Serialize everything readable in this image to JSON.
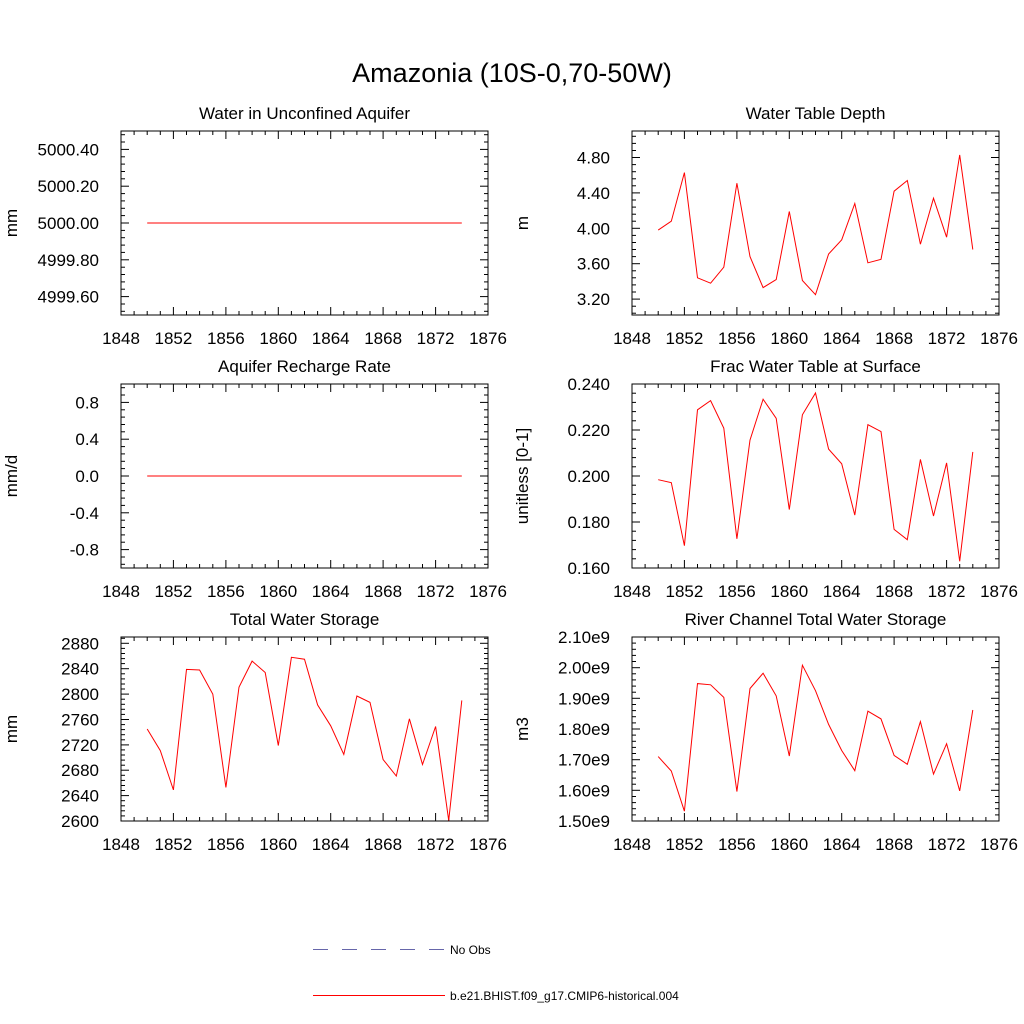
{
  "figure_title": "Amazonia (10S-0,70-50W)",
  "legend": [
    {
      "label": "No Obs",
      "color": "#6666aa",
      "style": "dashed"
    },
    {
      "label": "b.e21.BHIST.f09_g17.CMIP6-historical.004",
      "color": "#ff0000",
      "style": "solid"
    }
  ],
  "chart_data": [
    {
      "id": "aquifer-water",
      "type": "line",
      "title": "Water in Unconfined Aquifer",
      "ylabel": "mm",
      "xlim": [
        1848,
        1876
      ],
      "ylim": [
        4999.5,
        5000.5
      ],
      "xticks": [
        1848,
        1852,
        1856,
        1860,
        1864,
        1868,
        1872,
        1876
      ],
      "yticks": [
        4999.6,
        4999.8,
        5000.0,
        5000.2,
        5000.4
      ],
      "ytick_labels": [
        "4999.60",
        "4999.80",
        "5000.00",
        "5000.20",
        "5000.40"
      ],
      "x": [
        1850,
        1851,
        1852,
        1853,
        1854,
        1855,
        1856,
        1857,
        1858,
        1859,
        1860,
        1861,
        1862,
        1863,
        1864,
        1865,
        1866,
        1867,
        1868,
        1869,
        1870,
        1871,
        1872,
        1873,
        1874
      ],
      "values": [
        5000,
        5000,
        5000,
        5000,
        5000,
        5000,
        5000,
        5000,
        5000,
        5000,
        5000,
        5000,
        5000,
        5000,
        5000,
        5000,
        5000,
        5000,
        5000,
        5000,
        5000,
        5000,
        5000,
        5000,
        5000
      ]
    },
    {
      "id": "water-table-depth",
      "type": "line",
      "title": "Water Table Depth",
      "ylabel": "m",
      "xlim": [
        1848,
        1876
      ],
      "ylim": [
        3.02,
        5.1
      ],
      "xticks": [
        1848,
        1852,
        1856,
        1860,
        1864,
        1868,
        1872,
        1876
      ],
      "yticks": [
        3.2,
        3.6,
        4.0,
        4.4,
        4.8
      ],
      "ytick_labels": [
        "3.20",
        "3.60",
        "4.00",
        "4.40",
        "4.80"
      ],
      "x": [
        1850,
        1851,
        1852,
        1853,
        1854,
        1855,
        1856,
        1857,
        1858,
        1859,
        1860,
        1861,
        1862,
        1863,
        1864,
        1865,
        1866,
        1867,
        1868,
        1869,
        1870,
        1871,
        1872,
        1873,
        1874
      ],
      "values": [
        3.98,
        4.08,
        4.63,
        3.44,
        3.38,
        3.56,
        4.51,
        3.68,
        3.33,
        3.42,
        4.19,
        3.41,
        3.25,
        3.71,
        3.87,
        4.28,
        3.61,
        3.65,
        4.42,
        4.54,
        3.82,
        4.34,
        3.9,
        4.83,
        3.76
      ]
    },
    {
      "id": "aquifer-recharge",
      "type": "line",
      "title": "Aquifer Recharge Rate",
      "ylabel": "mm/d",
      "xlim": [
        1848,
        1876
      ],
      "ylim": [
        -1.0,
        1.0
      ],
      "xticks": [
        1848,
        1852,
        1856,
        1860,
        1864,
        1868,
        1872,
        1876
      ],
      "yticks": [
        -0.8,
        -0.4,
        0.0,
        0.4,
        0.8
      ],
      "ytick_labels": [
        "-0.8",
        "-0.4",
        "0.0",
        "0.4",
        "0.8"
      ],
      "x": [
        1850,
        1851,
        1852,
        1853,
        1854,
        1855,
        1856,
        1857,
        1858,
        1859,
        1860,
        1861,
        1862,
        1863,
        1864,
        1865,
        1866,
        1867,
        1868,
        1869,
        1870,
        1871,
        1872,
        1873,
        1874
      ],
      "values": [
        0,
        0,
        0,
        0,
        0,
        0,
        0,
        0,
        0,
        0,
        0,
        0,
        0,
        0,
        0,
        0,
        0,
        0,
        0,
        0,
        0,
        0,
        0,
        0,
        0
      ]
    },
    {
      "id": "frac-water-table",
      "type": "line",
      "title": "Frac Water Table at Surface",
      "ylabel": "unitless [0-1]",
      "xlim": [
        1848,
        1876
      ],
      "ylim": [
        0.16,
        0.24
      ],
      "xticks": [
        1848,
        1852,
        1856,
        1860,
        1864,
        1868,
        1872,
        1876
      ],
      "yticks": [
        0.16,
        0.18,
        0.2,
        0.22,
        0.24
      ],
      "ytick_labels": [
        "0.160",
        "0.180",
        "0.200",
        "0.220",
        "0.240"
      ],
      "x": [
        1850,
        1851,
        1852,
        1853,
        1854,
        1855,
        1856,
        1857,
        1858,
        1859,
        1860,
        1861,
        1862,
        1863,
        1864,
        1865,
        1866,
        1867,
        1868,
        1869,
        1870,
        1871,
        1872,
        1873,
        1874
      ],
      "values": [
        0.1984,
        0.1971,
        0.1697,
        0.2288,
        0.2328,
        0.2208,
        0.1727,
        0.2156,
        0.2334,
        0.2251,
        0.1854,
        0.2266,
        0.2361,
        0.2117,
        0.2053,
        0.183,
        0.2223,
        0.2193,
        0.1768,
        0.1723,
        0.2072,
        0.1826,
        0.2057,
        0.1629,
        0.2105
      ]
    },
    {
      "id": "total-water-storage",
      "type": "line",
      "title": "Total Water Storage",
      "ylabel": "mm",
      "xlim": [
        1848,
        1876
      ],
      "ylim": [
        2600,
        2890
      ],
      "xticks": [
        1848,
        1852,
        1856,
        1860,
        1864,
        1868,
        1872,
        1876
      ],
      "yticks": [
        2600,
        2640,
        2680,
        2720,
        2760,
        2800,
        2840,
        2880
      ],
      "ytick_labels": [
        "2600",
        "2640",
        "2680",
        "2720",
        "2760",
        "2800",
        "2840",
        "2880"
      ],
      "x": [
        1850,
        1851,
        1852,
        1853,
        1854,
        1855,
        1856,
        1857,
        1858,
        1859,
        1860,
        1861,
        1862,
        1863,
        1864,
        1865,
        1866,
        1867,
        1868,
        1869,
        1870,
        1871,
        1872,
        1873,
        1874
      ],
      "values": [
        2745,
        2711,
        2649,
        2839,
        2838,
        2800,
        2653,
        2811,
        2852,
        2834,
        2719,
        2858,
        2855,
        2783,
        2750,
        2705,
        2797,
        2787,
        2697,
        2671,
        2761,
        2689,
        2749,
        2601,
        2790
      ]
    },
    {
      "id": "river-channel-storage",
      "type": "line",
      "title": "River Channel Total Water Storage",
      "ylabel": "m3",
      "xlim": [
        1848,
        1876
      ],
      "ylim": [
        1.5,
        2.1
      ],
      "xticks": [
        1848,
        1852,
        1856,
        1860,
        1864,
        1868,
        1872,
        1876
      ],
      "yticks": [
        1.5,
        1.6,
        1.7,
        1.8,
        1.9,
        2.0,
        2.1
      ],
      "ytick_labels": [
        "1.50e9",
        "1.60e9",
        "1.70e9",
        "1.80e9",
        "1.90e9",
        "2.00e9",
        "2.10e9"
      ],
      "yunit_note": "values in units of 1e9 m3",
      "x": [
        1850,
        1851,
        1852,
        1853,
        1854,
        1855,
        1856,
        1857,
        1858,
        1859,
        1860,
        1861,
        1862,
        1863,
        1864,
        1865,
        1866,
        1867,
        1868,
        1869,
        1870,
        1871,
        1872,
        1873,
        1874
      ],
      "values": [
        1.71,
        1.663,
        1.532,
        1.948,
        1.944,
        1.903,
        1.596,
        1.932,
        1.982,
        1.908,
        1.712,
        2.008,
        1.925,
        1.815,
        1.73,
        1.664,
        1.858,
        1.833,
        1.714,
        1.685,
        1.824,
        1.653,
        1.752,
        1.598,
        1.862
      ]
    }
  ]
}
